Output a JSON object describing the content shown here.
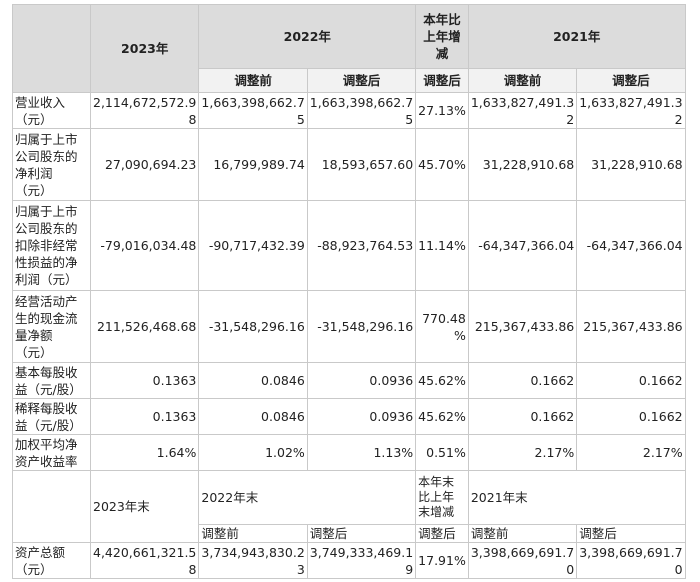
{
  "headers": {
    "y2023": "2023年",
    "y2022": "2022年",
    "yoy": "本年比\n上年增\n减",
    "y2021": "2021年",
    "before": "调整前",
    "after": "调整后",
    "adj_after": "调整后"
  },
  "rows": [
    {
      "label": "营业收入\n（元）",
      "v2023": "2,114,672,572.9\n8",
      "v2022_before": "1,663,398,662.7\n5",
      "v2022_after": "1,663,398,662.7\n5",
      "yoy": "27.13%",
      "v2021_before": "1,633,827,491.3\n2",
      "v2021_after": "1,633,827,491.3\n2"
    },
    {
      "label": "归属于上市\n公司股东的\n净利润\n（元）",
      "v2023": "27,090,694.23",
      "v2022_before": "16,799,989.74",
      "v2022_after": "18,593,657.60",
      "yoy": "45.70%",
      "v2021_before": "31,228,910.68",
      "v2021_after": "31,228,910.68"
    },
    {
      "label": "归属于上市\n公司股东的\n扣除非经常\n性损益的净\n利润（元）",
      "v2023": "-79,016,034.48",
      "v2022_before": "-90,717,432.39",
      "v2022_after": "-88,923,764.53",
      "yoy": "11.14%",
      "v2021_before": "-64,347,366.04",
      "v2021_after": "-64,347,366.04"
    },
    {
      "label": "经营活动产\n生的现金流\n量净额\n（元）",
      "v2023": "211,526,468.68",
      "v2022_before": "-31,548,296.16",
      "v2022_after": "-31,548,296.16",
      "yoy": "770.48\n%",
      "v2021_before": "215,367,433.86",
      "v2021_after": "215,367,433.86"
    },
    {
      "label": "基本每股收\n益（元/股）",
      "v2023": "0.1363",
      "v2022_before": "0.0846",
      "v2022_after": "0.0936",
      "yoy": "45.62%",
      "v2021_before": "0.1662",
      "v2021_after": "0.1662"
    },
    {
      "label": "稀释每股收\n益（元/股）",
      "v2023": "0.1363",
      "v2022_before": "0.0846",
      "v2022_after": "0.0936",
      "yoy": "45.62%",
      "v2021_before": "0.1662",
      "v2021_after": "0.1662"
    },
    {
      "label": "加权平均净\n资产收益率",
      "v2023": "1.64%",
      "v2022_before": "1.02%",
      "v2022_after": "1.13%",
      "yoy": "0.51%",
      "v2021_before": "2.17%",
      "v2021_after": "2.17%"
    }
  ],
  "headers2": {
    "y2023end": "2023年末",
    "y2022end": "2022年末",
    "yoy": "本年末\n比上年\n末增减",
    "y2021end": "2021年末",
    "before": "调整前",
    "after": "调整后",
    "yoy_after": "调整后"
  },
  "total": {
    "label": "资产总额\n（元）",
    "v2023": "4,420,661,321.5\n8",
    "v2022_before": "3,734,943,830.2\n3",
    "v2022_after": "3,749,333,469.1\n9",
    "yoy": "17.91%",
    "v2021_before": "3,398,669,691.7\n0",
    "v2021_after": "3,398,669,691.7\n0"
  }
}
